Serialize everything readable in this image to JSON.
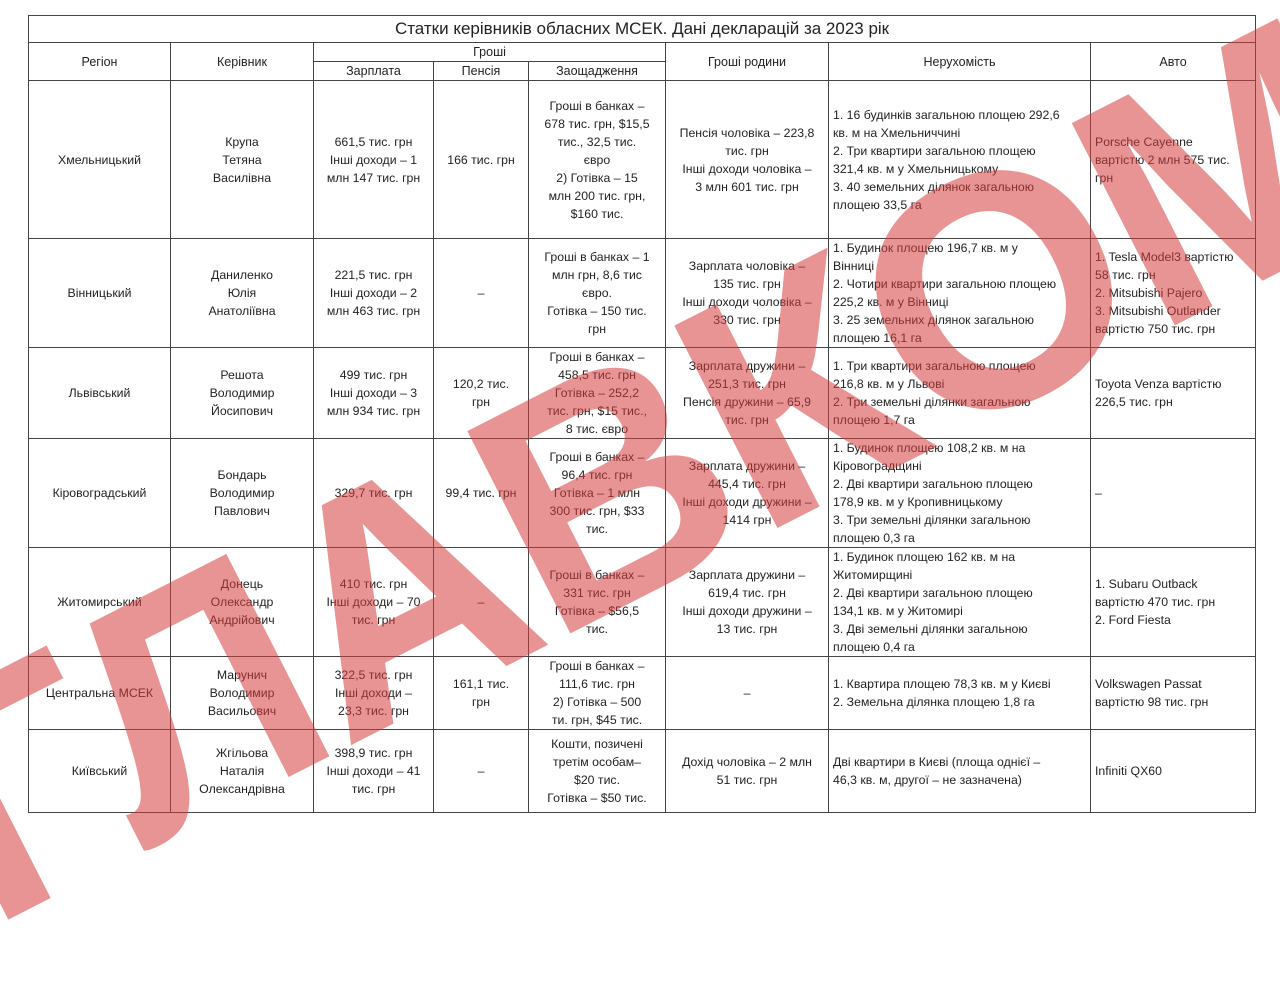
{
  "title": "Статки керівників обласних МСЕК. Дані декларацій за 2023 рік",
  "headers": {
    "region": "Регіон",
    "head": "Керівник",
    "money": "Гроші",
    "salary": "Зарплата",
    "pension": "Пенсія",
    "savings": "Заощадження",
    "family_money": "Гроші родини",
    "real_estate": "Нерухомість",
    "auto": "Авто"
  },
  "rows": [
    {
      "region": "Хмельницький",
      "head": "Крупа\nТетяна\nВасилівна",
      "salary": "661,5 тис. грн\nІнші доходи – 1\nмлн 147 тис. грн",
      "pension": "166 тис. грн",
      "savings": "Гроші в банках –\n678 тис. грн, $15,5\nтис., 32,5 тис.\nєвро\n2) Готівка – 15\nмлн 200 тис. грн,\n$160 тис.",
      "family": "Пенсія чоловіка – 223,8\nтис. грн\nІнші доходи чоловіка –\n3 млн 601 тис. грн",
      "real_estate": "1. 16 будинків загальною площею 292,6\nкв. м на Хмельниччині\n2. Три квартири загальною площею\n321,4 кв. м у Хмельницькому\n3. 40 земельних ділянок загальною\nплощею 33,5 га",
      "auto": "Porsche Cayenne\nвартістю 2 млн 575 тис.\nгрн"
    },
    {
      "region": "Вінницький",
      "head": "Даниленко\nЮлія\nАнатоліївна",
      "salary": "221,5 тис. грн\nІнші доходи – 2\nмлн 463 тис. грн",
      "pension": "–",
      "savings": "Гроші в банках – 1\nмлн грн, 8,6 тис\nєвро.\nГотівка – 150 тис.\nгрн",
      "family": "Зарплата чоловіка –\n135 тис. грн\nІнші доходи чоловіка –\n330 тис. грн",
      "real_estate": "1. Будинок площею 196,7 кв. м  у\nВінниці\n2. Чотири квартири загальною площею\n225,2 кв. м у Вінниці\n3. 25 земельних ділянок загальною\nплощею 16,1 га",
      "auto": "1. Tesla Model3 вартістю\n58 тис. грн\n2. Mitsubishi Pajero\n3. Mitsubishi Outlander\nвартістю 750 тис. грн"
    },
    {
      "region": "Львівський",
      "head": "Решота\nВолодимир\nЙосипович",
      "salary": "499 тис. грн\nІнші доходи – 3\nмлн 934 тис. грн",
      "pension": "120,2 тис.\nгрн",
      "savings": "Гроші в банках –\n458,5 тис. грн\nГотівка – 252,2\nтис. грн, $15 тис.,\n8 тис. євро",
      "family": "Зарплата дружини –\n251,3 тис. грн\nПенсія дружини – 65,9\nтис. грн",
      "real_estate": "1. Три квартири загальною  площею\n216,8 кв. м у Львові\n2. Три земельні ділянки загальною\nплощею 1,7 га",
      "auto": "Toyota Venza вартістю\n226,5 тис. грн"
    },
    {
      "region": "Кіровоградський",
      "head": "Бондарь\nВолодимир\nПавлович",
      "salary": "329,7 тис. грн",
      "pension": "99,4 тис. грн",
      "savings": "Гроші в банках –\n96,4 тис. грн\nГотівка – 1 млн\n300 тис. грн, $33\nтис.",
      "family": "Зарплата дружини –\n445,4 тис. грн\nІнші доходи дружини –\n1414 грн",
      "real_estate": "1. Будинок площею 108,2 кв. м на\nКіровоградщині\n2. Дві квартири загальною площею\n178,9 кв. м у Кропивницькому\n3. Три земельні ділянки загальною\nплощею 0,3 га",
      "auto": "–"
    },
    {
      "region": "Житомирський",
      "head": "Донець\nОлександр\nАндрійович",
      "salary": "410 тис. грн\nІнші доходи – 70\nтис. грн",
      "pension": "–",
      "savings": "Гроші в банках –\n331 тис. грн\nГотівка – $56,5\nтис.",
      "family": "Зарплата дружини –\n619,4 тис. грн\nІнші доходи дружини –\n13 тис. грн",
      "real_estate": "1. Будинок площею 162 кв. м на\nЖитомирщині\n2. Дві квартири загальною площею\n134,1 кв. м у Житомирі\n3. Дві земельні ділянки загальною\nплощею 0,4 га",
      "auto": "1. Subaru Outback\nвартістю 470 тис. грн\n2. Ford Fiesta"
    },
    {
      "region": "Центральна МСЕК",
      "head": "Марунич\nВолодимир\nВасильович",
      "salary": "322,5 тис. грн\nІнші доходи –\n23,3 тис. грн",
      "pension": "161,1 тис.\nгрн",
      "savings": "Гроші в банках –\n111,6 тис. грн\n2) Готівка – 500\nти. грн, $45 тис.",
      "family": "–",
      "real_estate": "1. Квартира площею 78,3 кв. м у Києві\n2. Земельна ділянка площею 1,8 га",
      "auto": "Volkswagen Passat\nвартістю 98 тис. грн"
    },
    {
      "region": "Київський",
      "head": "Жгільова\nНаталія\nОлександрівна",
      "salary": "398,9 тис. грн\nІнші доходи – 41\nтис. грн",
      "pension": "–",
      "savings": "Кошти, позичені\nтретім особам–\n$20 тис.\nГотівка – $50 тис.",
      "family": "Дохід чоловіка – 2 млн\n51 тис. грн",
      "real_estate": "Дві квартири в Києві (площа однієї –\n46,3 кв. м, другої – не зазначена)",
      "auto": "Infiniti QX60"
    }
  ],
  "watermark": "ГЛАВКОМ",
  "colors": {
    "watermark": "#d63c3c",
    "border": "#444444"
  }
}
